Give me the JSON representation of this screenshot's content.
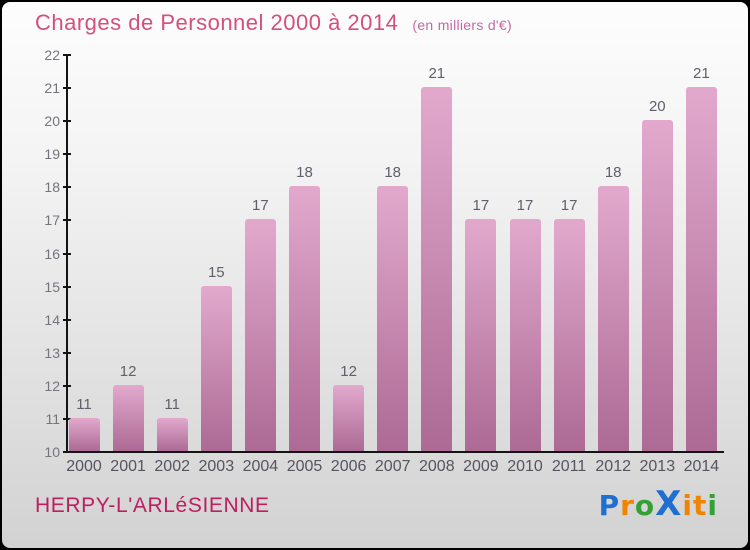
{
  "header": {
    "title": "Charges de Personnel 2000 à 2014",
    "subtitle": "(en milliers d'€)"
  },
  "chart_data": {
    "type": "bar",
    "title": "Charges de Personnel 2000 à 2014",
    "subtitle": "(en milliers d'€)",
    "categories": [
      "2000",
      "2001",
      "2002",
      "2003",
      "2004",
      "2005",
      "2006",
      "2007",
      "2008",
      "2009",
      "2010",
      "2011",
      "2012",
      "2013",
      "2014"
    ],
    "values": [
      11,
      12,
      11,
      15,
      17,
      18,
      12,
      18,
      21,
      17,
      17,
      17,
      18,
      20,
      21
    ],
    "xlabel": "",
    "ylabel": "",
    "ylim": [
      10,
      22
    ],
    "ytick_step": 1,
    "grid": false,
    "legend": false,
    "value_labels_shown": true
  },
  "footer": {
    "entity": "HERPY-L'ARLéSIENNE"
  },
  "logo": {
    "name": "Proxiti",
    "letters": [
      {
        "ch": "P",
        "color": "#1e6fd0",
        "big": false
      },
      {
        "ch": "r",
        "color": "#f08300",
        "big": false
      },
      {
        "ch": "o",
        "color": "#35a035",
        "big": false
      },
      {
        "ch": "X",
        "color": "#1e6fd0",
        "big": true
      },
      {
        "ch": "i",
        "color": "#f08300",
        "big": false
      },
      {
        "ch": "t",
        "color": "#f08300",
        "big": false
      },
      {
        "ch": "i",
        "color": "#35a035",
        "big": false
      }
    ]
  },
  "colors": {
    "title": "#d4507a",
    "subtitle": "#c668a4",
    "entity": "#bd2061",
    "bar_top": "#e2a9cd",
    "bar_bottom": "#ac6a94",
    "axis": "#141414",
    "tick_label": "#74747c",
    "value_label": "#60606a",
    "x_label": "#55555d"
  }
}
